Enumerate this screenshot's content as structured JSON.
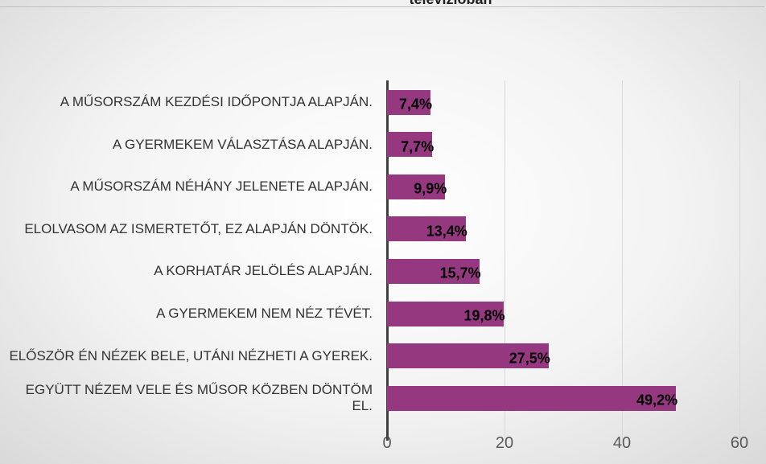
{
  "chart_data": {
    "type": "barh",
    "title": "televízióban",
    "categories": [
      "A MŰSORSZÁM KEZDÉSI IDŐPONTJA ALAPJÁN.",
      "A GYERMEKEM VÁLASZTÁSA ALAPJÁN.",
      "A MŰSORSZÁM NÉHÁNY JELENETE ALAPJÁN.",
      "ELOLVASOM AZ ISMERTETŐT, EZ ALAPJÁN DÖNTÖK.",
      "A KORHATÁR JELÖLÉS ALAPJÁN.",
      "A GYERMEKEM NEM NÉZ TÉVÉT.",
      "ELŐSZÖR ÉN NÉZEK BELE, UTÁNI NÉZHETI A GYEREK.",
      "EGYÜTT NÉZEM VELE ÉS MŰSOR KÖZBEN DÖNTÖM EL."
    ],
    "values": [
      7.4,
      7.7,
      9.9,
      13.4,
      15.7,
      19.8,
      27.5,
      49.2
    ],
    "value_labels": [
      "7,4%",
      "7,7%",
      "9,9%",
      "13,4%",
      "15,7%",
      "19,8%",
      "27,5%",
      "49,2%"
    ],
    "color": "#953880",
    "xlim": [
      0,
      60
    ],
    "xticks": [
      0,
      20,
      40,
      60
    ],
    "grid": true
  }
}
